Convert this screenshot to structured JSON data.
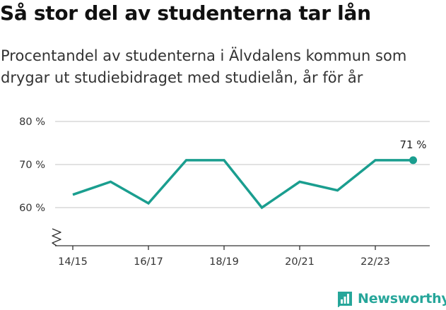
{
  "title": "Så stor del av studenterna tar lån",
  "subtitle": "Procentandel av studenterna i Älvdalens kommun som drygar ut studiebidraget med studielån, år för år",
  "brand": {
    "name": "Newsworthy",
    "color": "#26a69a",
    "icon": "chart-bubble-icon"
  },
  "colors": {
    "line": "#1a9e8f",
    "grid": "#d9d9d9",
    "axis": "#333333"
  },
  "chart_data": {
    "type": "line",
    "title": "Så stor del av studenterna tar lån",
    "subtitle": "Procentandel av studenterna i Älvdalens kommun som drygar ut studiebidraget med studielån, år för år",
    "xlabel": "",
    "ylabel": "",
    "x": [
      "14/15",
      "15/16",
      "16/17",
      "17/18",
      "18/19",
      "19/20",
      "20/21",
      "21/22",
      "22/23",
      "23/24"
    ],
    "xticks": [
      "14/15",
      "16/17",
      "18/19",
      "20/21",
      "22/23"
    ],
    "yticks": [
      60,
      70,
      80
    ],
    "ytick_labels": [
      "60 %",
      "70 %",
      "80 %"
    ],
    "ylim": [
      51,
      80
    ],
    "axis_break": true,
    "grid": true,
    "legend": "none",
    "series": [
      {
        "values": [
          63,
          66,
          61,
          71,
          71,
          60,
          66,
          64,
          71,
          71
        ]
      }
    ],
    "annotations": [
      {
        "x": "23/24",
        "text": "71 %"
      }
    ]
  }
}
